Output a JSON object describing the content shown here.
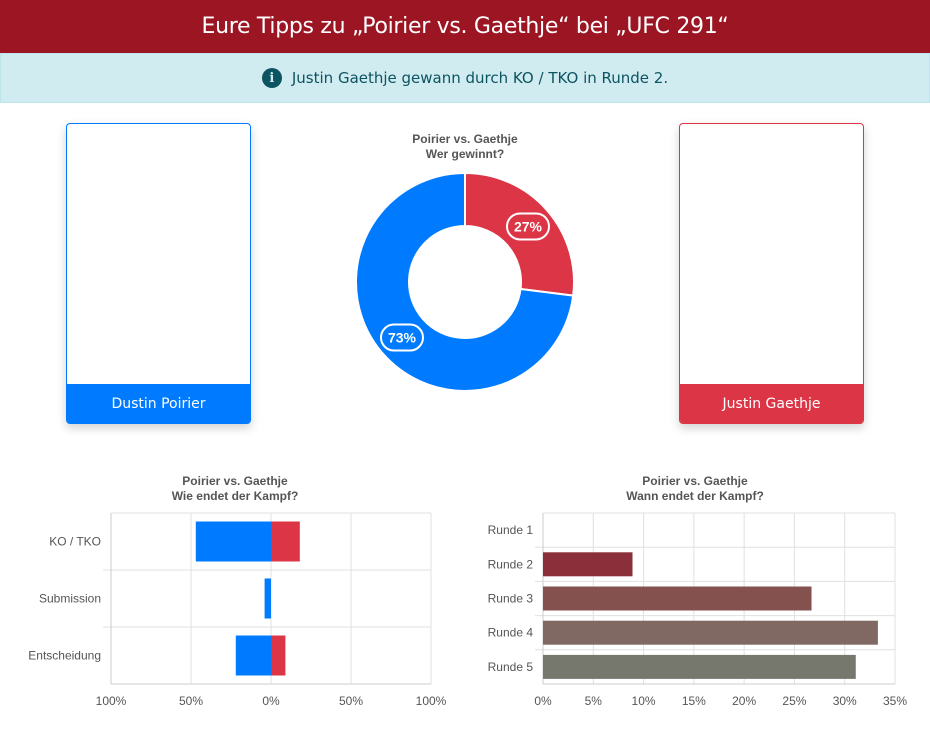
{
  "header": {
    "title": "Eure Tipps zu „Poirier vs. Gaethje“ bei „UFC 291“"
  },
  "info": {
    "icon": "info-icon",
    "text": "Justin Gaethje gewann durch KO / TKO in Runde 2."
  },
  "fighters": {
    "left": {
      "name": "Dustin Poirier",
      "color": "#007bff"
    },
    "right": {
      "name": "Justin Gaethje",
      "color": "#dc3545"
    }
  },
  "chart_data": [
    {
      "type": "pie",
      "title": "Poirier vs. Gaethje",
      "subtitle": "Wer gewinnt?",
      "slices": [
        {
          "label": "Justin Gaethje",
          "value": 27,
          "display": "27%",
          "color": "#dc3545"
        },
        {
          "label": "Dustin Poirier",
          "value": 73,
          "display": "73%",
          "color": "#007bff"
        }
      ]
    },
    {
      "type": "bar",
      "orientation": "horizontal-diverging",
      "title": "Poirier vs. Gaethje",
      "subtitle": "Wie endet der Kampf?",
      "categories": [
        "KO / TKO",
        "Submission",
        "Entscheidung"
      ],
      "series": [
        {
          "name": "Dustin Poirier",
          "color": "#007bff",
          "values": [
            47,
            4,
            22
          ]
        },
        {
          "name": "Justin Gaethje",
          "color": "#dc3545",
          "values": [
            18,
            0,
            9
          ]
        }
      ],
      "xlim": [
        -100,
        100
      ],
      "xticks": [
        "100%",
        "50%",
        "0%",
        "50%",
        "100%"
      ],
      "grid": true
    },
    {
      "type": "bar",
      "orientation": "horizontal",
      "title": "Poirier vs. Gaethje",
      "subtitle": "Wann endet der Kampf?",
      "categories": [
        "Runde 1",
        "Runde 2",
        "Runde 3",
        "Runde 4",
        "Runde 5"
      ],
      "values": [
        0,
        8.9,
        26.7,
        33.3,
        31.1
      ],
      "colors": [
        "#8b1a2a",
        "#8b2f3a",
        "#85514f",
        "#7f6962",
        "#77786d"
      ],
      "xlim": [
        0,
        35
      ],
      "xticks": [
        "0%",
        "5%",
        "10%",
        "15%",
        "20%",
        "25%",
        "30%",
        "35%"
      ],
      "grid": true
    }
  ]
}
